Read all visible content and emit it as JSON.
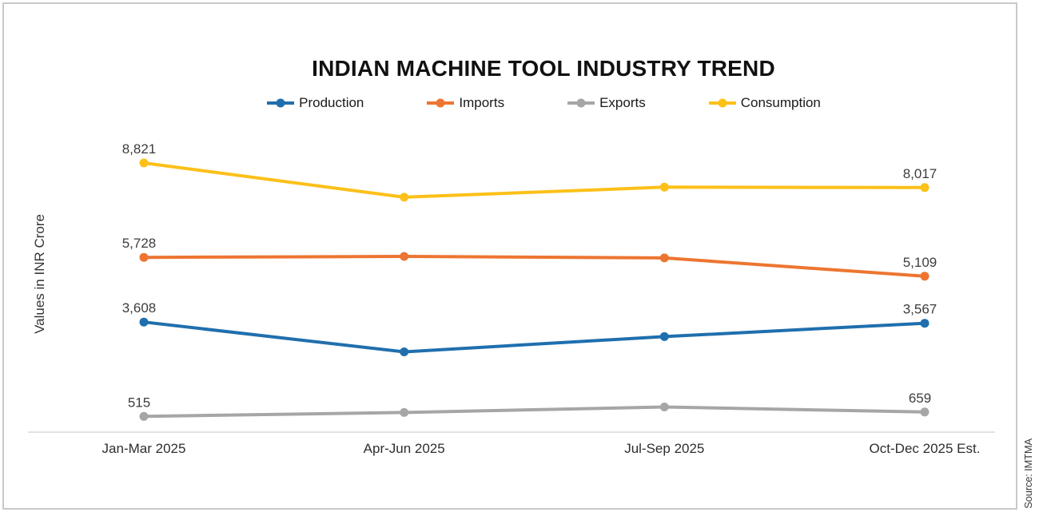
{
  "title": "INDIAN MACHINE TOOL INDUSTRY TREND",
  "ylabel": "Values in INR Crore",
  "source": "Source: IMTMA",
  "chart_data": {
    "type": "line",
    "title": "INDIAN MACHINE TOOL INDUSTRY TREND",
    "xlabel": "",
    "ylabel": "Values in INR Crore",
    "categories": [
      "Jan-Mar 2025",
      "Apr-Jun 2025",
      "Jul-Sep 2025",
      "Oct-Dec 2025 Est."
    ],
    "ylim": [
      0,
      10000
    ],
    "grid": false,
    "legend_position": "top",
    "axis_color": "#d9d9d9",
    "label_color": "#3d3d3d",
    "series": [
      {
        "name": "Production",
        "color": "#1f6fae",
        "values": [
          3608,
          2630,
          3130,
          3567
        ],
        "point_labels": [
          "3,608",
          null,
          null,
          "3,567"
        ]
      },
      {
        "name": "Imports",
        "color": "#ed7531",
        "values": [
          5728,
          5760,
          5710,
          5109
        ],
        "point_labels": [
          "5,728",
          null,
          null,
          "5,109"
        ]
      },
      {
        "name": "Exports",
        "color": "#a6a6a6",
        "values": [
          515,
          645,
          825,
          659
        ],
        "point_labels": [
          "515",
          null,
          null,
          "659"
        ]
      },
      {
        "name": "Consumption",
        "color": "#fcc019",
        "values": [
          8821,
          7700,
          8030,
          8017
        ],
        "point_labels": [
          "8,821",
          null,
          null,
          "8,017"
        ]
      }
    ]
  }
}
